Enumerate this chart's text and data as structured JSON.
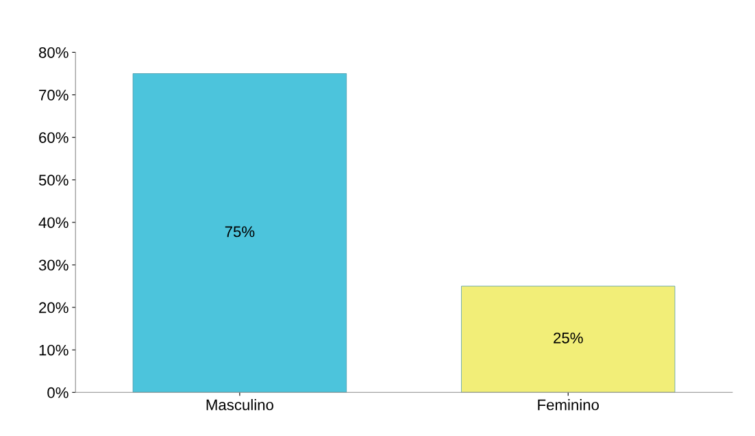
{
  "chart_data": {
    "type": "bar",
    "categories": [
      "Masculino",
      "Feminino"
    ],
    "values": [
      75,
      25
    ],
    "colors": [
      "#4cc4dc",
      "#f2ee78"
    ],
    "ylim": [
      0,
      80
    ],
    "yticks": [
      {
        "value": 0,
        "label": "0%"
      },
      {
        "value": 10,
        "label": "10%"
      },
      {
        "value": 20,
        "label": "20%"
      },
      {
        "value": 30,
        "label": "30%"
      },
      {
        "value": 40,
        "label": "40%"
      },
      {
        "value": 50,
        "label": "50%"
      },
      {
        "value": 60,
        "label": "60%"
      },
      {
        "value": 70,
        "label": "70%"
      },
      {
        "value": 80,
        "label": "80%"
      }
    ],
    "value_labels": [
      "75%",
      "25%"
    ],
    "grid": false,
    "legend": false
  }
}
